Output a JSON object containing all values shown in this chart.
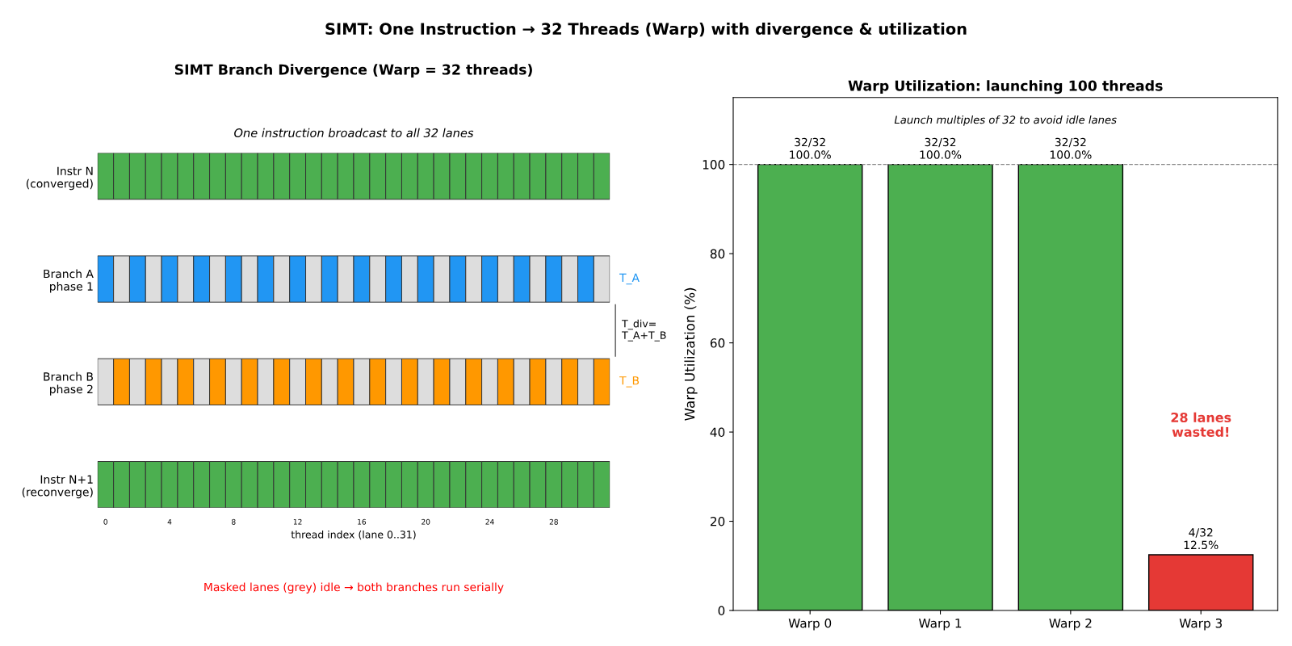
{
  "chart_data": [
    {
      "type": "other",
      "title": "SIMT: One Instruction → 32 Threads (Warp) with divergence & utilization"
    },
    {
      "type": "bar",
      "orientation": "horizontal",
      "stacked": true,
      "title": "SIMT Branch Divergence (Warp = 32 threads)",
      "subtitle": "One instruction broadcast to all 32 lanes",
      "xlabel": "thread index (lane 0..31)",
      "categories": [
        "Instr N\n(converged)",
        "Branch A\nphase 1",
        "Branch B\nphase 2",
        "Instr N+1\n(reconverge)"
      ],
      "xlim": [
        0,
        32
      ],
      "xticks": [
        {
          "value": 0.5,
          "label": "0"
        },
        {
          "value": 4.5,
          "label": "4"
        },
        {
          "value": 8.5,
          "label": "8"
        },
        {
          "value": 12.5,
          "label": "12"
        },
        {
          "value": 16.5,
          "label": "16"
        },
        {
          "value": 20.5,
          "label": "20"
        },
        {
          "value": 24.5,
          "label": "24"
        },
        {
          "value": 28.5,
          "label": "28"
        }
      ],
      "series": [
        {
          "values": [
            1,
            1,
            1,
            1
          ],
          "colors": [
            "#4caf50",
            "#2196f3",
            "#dddddd",
            "#4caf50"
          ]
        },
        {
          "values": [
            1,
            1,
            1,
            1
          ],
          "colors": [
            "#4caf50",
            "#dddddd",
            "#ff9800",
            "#4caf50"
          ]
        },
        {
          "values": [
            1,
            1,
            1,
            1
          ],
          "colors": [
            "#4caf50",
            "#2196f3",
            "#dddddd",
            "#4caf50"
          ]
        },
        {
          "values": [
            1,
            1,
            1,
            1
          ],
          "colors": [
            "#4caf50",
            "#dddddd",
            "#ff9800",
            "#4caf50"
          ]
        },
        {
          "values": [
            1,
            1,
            1,
            1
          ],
          "colors": [
            "#4caf50",
            "#2196f3",
            "#dddddd",
            "#4caf50"
          ]
        },
        {
          "values": [
            1,
            1,
            1,
            1
          ],
          "colors": [
            "#4caf50",
            "#dddddd",
            "#ff9800",
            "#4caf50"
          ]
        },
        {
          "values": [
            1,
            1,
            1,
            1
          ],
          "colors": [
            "#4caf50",
            "#2196f3",
            "#dddddd",
            "#4caf50"
          ]
        },
        {
          "values": [
            1,
            1,
            1,
            1
          ],
          "colors": [
            "#4caf50",
            "#dddddd",
            "#ff9800",
            "#4caf50"
          ]
        },
        {
          "values": [
            1,
            1,
            1,
            1
          ],
          "colors": [
            "#4caf50",
            "#2196f3",
            "#dddddd",
            "#4caf50"
          ]
        },
        {
          "values": [
            1,
            1,
            1,
            1
          ],
          "colors": [
            "#4caf50",
            "#dddddd",
            "#ff9800",
            "#4caf50"
          ]
        },
        {
          "values": [
            1,
            1,
            1,
            1
          ],
          "colors": [
            "#4caf50",
            "#2196f3",
            "#dddddd",
            "#4caf50"
          ]
        },
        {
          "values": [
            1,
            1,
            1,
            1
          ],
          "colors": [
            "#4caf50",
            "#dddddd",
            "#ff9800",
            "#4caf50"
          ]
        },
        {
          "values": [
            1,
            1,
            1,
            1
          ],
          "colors": [
            "#4caf50",
            "#2196f3",
            "#dddddd",
            "#4caf50"
          ]
        },
        {
          "values": [
            1,
            1,
            1,
            1
          ],
          "colors": [
            "#4caf50",
            "#dddddd",
            "#ff9800",
            "#4caf50"
          ]
        },
        {
          "values": [
            1,
            1,
            1,
            1
          ],
          "colors": [
            "#4caf50",
            "#2196f3",
            "#dddddd",
            "#4caf50"
          ]
        },
        {
          "values": [
            1,
            1,
            1,
            1
          ],
          "colors": [
            "#4caf50",
            "#dddddd",
            "#ff9800",
            "#4caf50"
          ]
        },
        {
          "values": [
            1,
            1,
            1,
            1
          ],
          "colors": [
            "#4caf50",
            "#2196f3",
            "#dddddd",
            "#4caf50"
          ]
        },
        {
          "values": [
            1,
            1,
            1,
            1
          ],
          "colors": [
            "#4caf50",
            "#dddddd",
            "#ff9800",
            "#4caf50"
          ]
        },
        {
          "values": [
            1,
            1,
            1,
            1
          ],
          "colors": [
            "#4caf50",
            "#2196f3",
            "#dddddd",
            "#4caf50"
          ]
        },
        {
          "values": [
            1,
            1,
            1,
            1
          ],
          "colors": [
            "#4caf50",
            "#dddddd",
            "#ff9800",
            "#4caf50"
          ]
        },
        {
          "values": [
            1,
            1,
            1,
            1
          ],
          "colors": [
            "#4caf50",
            "#2196f3",
            "#dddddd",
            "#4caf50"
          ]
        },
        {
          "values": [
            1,
            1,
            1,
            1
          ],
          "colors": [
            "#4caf50",
            "#dddddd",
            "#ff9800",
            "#4caf50"
          ]
        },
        {
          "values": [
            1,
            1,
            1,
            1
          ],
          "colors": [
            "#4caf50",
            "#2196f3",
            "#dddddd",
            "#4caf50"
          ]
        },
        {
          "values": [
            1,
            1,
            1,
            1
          ],
          "colors": [
            "#4caf50",
            "#dddddd",
            "#ff9800",
            "#4caf50"
          ]
        },
        {
          "values": [
            1,
            1,
            1,
            1
          ],
          "colors": [
            "#4caf50",
            "#2196f3",
            "#dddddd",
            "#4caf50"
          ]
        },
        {
          "values": [
            1,
            1,
            1,
            1
          ],
          "colors": [
            "#4caf50",
            "#dddddd",
            "#ff9800",
            "#4caf50"
          ]
        },
        {
          "values": [
            1,
            1,
            1,
            1
          ],
          "colors": [
            "#4caf50",
            "#2196f3",
            "#dddddd",
            "#4caf50"
          ]
        },
        {
          "values": [
            1,
            1,
            1,
            1
          ],
          "colors": [
            "#4caf50",
            "#dddddd",
            "#ff9800",
            "#4caf50"
          ]
        },
        {
          "values": [
            1,
            1,
            1,
            1
          ],
          "colors": [
            "#4caf50",
            "#2196f3",
            "#dddddd",
            "#4caf50"
          ]
        },
        {
          "values": [
            1,
            1,
            1,
            1
          ],
          "colors": [
            "#4caf50",
            "#dddddd",
            "#ff9800",
            "#4caf50"
          ]
        },
        {
          "values": [
            1,
            1,
            1,
            1
          ],
          "colors": [
            "#4caf50",
            "#2196f3",
            "#dddddd",
            "#4caf50"
          ]
        },
        {
          "values": [
            1,
            1,
            1,
            1
          ],
          "colors": [
            "#4caf50",
            "#dddddd",
            "#ff9800",
            "#4caf50"
          ]
        }
      ],
      "annotations": [
        "T_A",
        "T_div=\nT_A+T_B",
        "T_B",
        "Masked lanes (grey) idle → both branches run serially"
      ]
    },
    {
      "type": "bar",
      "title": "Warp Utilization: launching 100 threads",
      "ylabel": "Warp Utilization (%)",
      "categories": [
        "Warp 0",
        "Warp 1",
        "Warp 2",
        "Warp 3"
      ],
      "values": [
        100,
        100,
        100,
        12.5
      ],
      "colors": [
        "#4caf50",
        "#4caf50",
        "#4caf50",
        "#e53935"
      ],
      "value_labels": [
        "32/32\n100.0%",
        "32/32\n100.0%",
        "32/32\n100.0%",
        "4/32\n12.5%"
      ],
      "ylim": [
        0,
        115
      ],
      "yticks": [
        0,
        20,
        40,
        60,
        80,
        100
      ],
      "grid": false,
      "legend": false,
      "ref_lines": [
        {
          "axis": "y",
          "value": 100,
          "color": "#888888",
          "line_style": "dashed"
        }
      ],
      "annotations": [
        "Launch multiples of 32 to avoid idle lanes",
        "28 lanes\nwasted!"
      ]
    }
  ]
}
